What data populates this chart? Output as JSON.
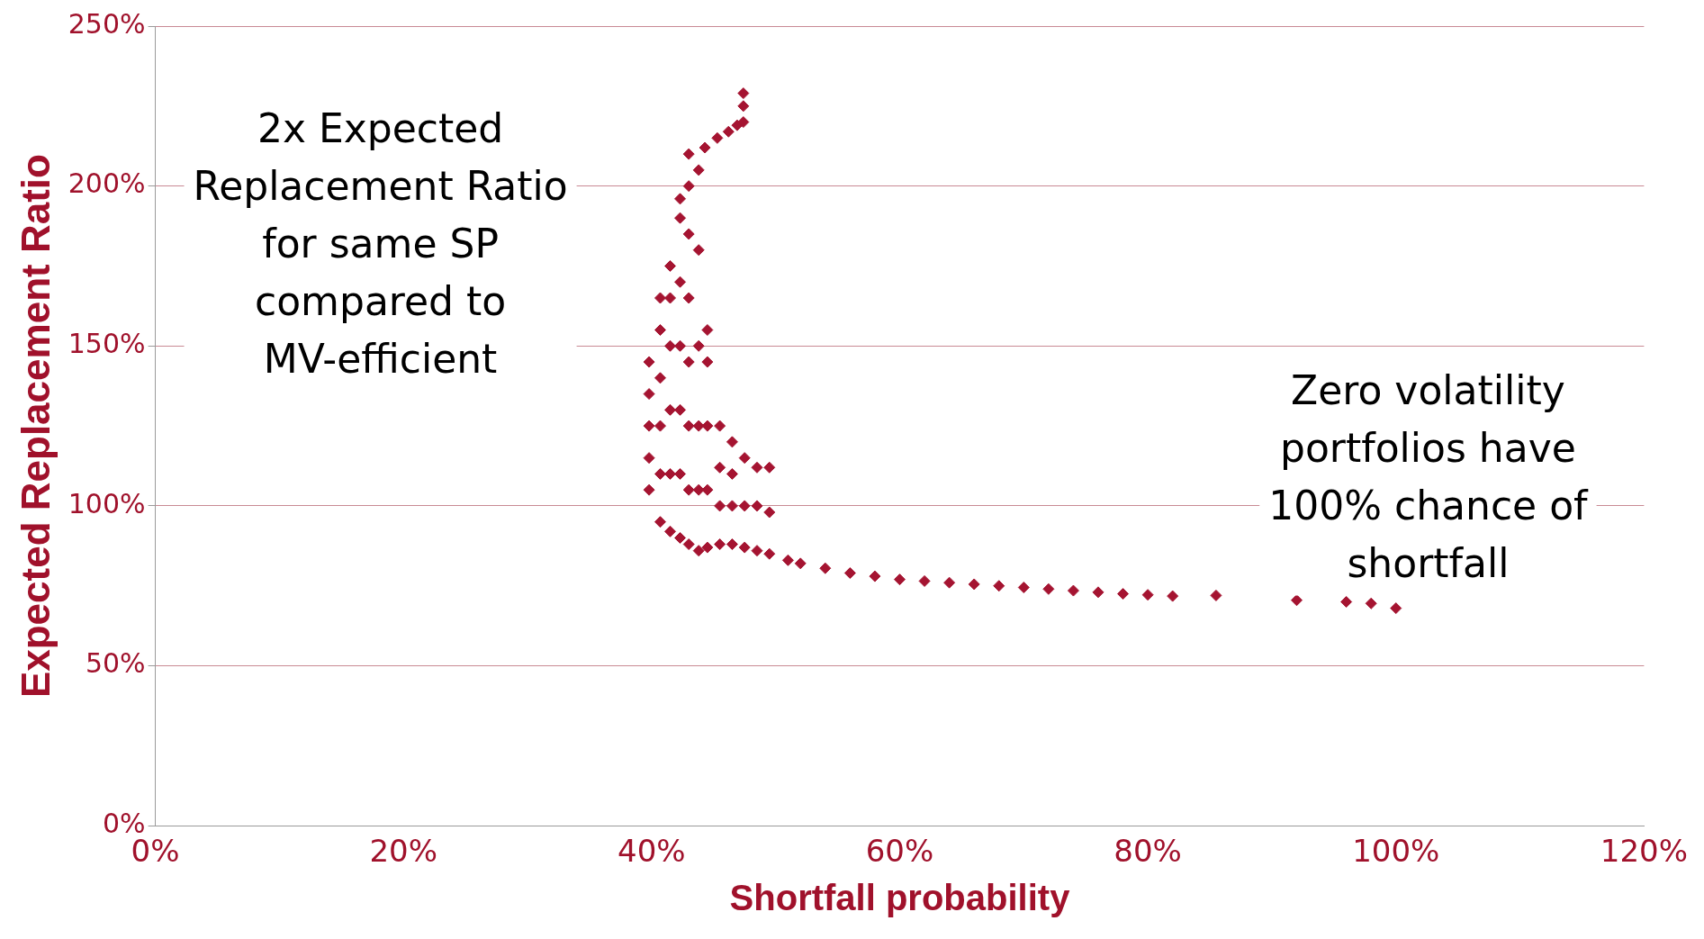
{
  "chart_data": {
    "type": "scatter",
    "xlabel": "Shortfall probability",
    "ylabel": "Expected Replacement Ratio",
    "xlim": [
      0,
      120
    ],
    "ylim": [
      0,
      250
    ],
    "xticks": [
      {
        "value": 0,
        "label": "0%"
      },
      {
        "value": 20,
        "label": "20%"
      },
      {
        "value": 40,
        "label": "40%"
      },
      {
        "value": 60,
        "label": "60%"
      },
      {
        "value": 80,
        "label": "80%"
      },
      {
        "value": 100,
        "label": "100%"
      },
      {
        "value": 120,
        "label": "120%"
      }
    ],
    "yticks": [
      {
        "value": 0,
        "label": "0%"
      },
      {
        "value": 50,
        "label": "50%"
      },
      {
        "value": 100,
        "label": "100%"
      },
      {
        "value": 150,
        "label": "150%"
      },
      {
        "value": 200,
        "label": "200%"
      },
      {
        "value": 250,
        "label": "250%"
      }
    ],
    "grid": "y",
    "marker": "diamond",
    "annotations": [
      "2x Expected Replacement Ratio for same SP compared to MV-efficient",
      "Zero volatility portfolios have 100% chance of shortfall"
    ],
    "series": [
      {
        "color": "#a51431",
        "x": [
          39.8,
          39.8,
          39.8,
          39.8,
          39.8,
          40.7,
          40.7,
          40.7,
          40.7,
          40.7,
          40.7,
          41.5,
          41.5,
          41.5,
          41.5,
          41.5,
          41.5,
          42.3,
          42.3,
          42.3,
          42.3,
          42.3,
          42.3,
          42.3,
          43,
          43,
          43,
          43,
          43,
          43,
          43,
          43,
          43.8,
          43.8,
          43.8,
          43.8,
          43.8,
          43.8,
          44.5,
          44.5,
          44.5,
          44.5,
          44.5,
          45.5,
          45.5,
          45.5,
          45.5,
          46.5,
          46.5,
          46.5,
          46.5,
          47.5,
          47.5,
          47.5,
          48.5,
          48.5,
          48.5,
          49.5,
          49.5,
          49.5,
          44.3,
          45.3,
          46.2,
          46.9,
          47.4,
          47.4,
          47.4,
          51,
          52,
          54,
          56,
          58,
          60,
          62,
          64,
          66,
          68,
          70,
          72,
          74,
          76,
          78,
          80,
          82,
          85.5,
          92,
          96,
          98,
          100
        ],
        "values": [
          105,
          115,
          125,
          135,
          145,
          95,
          110,
          125,
          140,
          155,
          165,
          92,
          110,
          130,
          150,
          165,
          175,
          90,
          110,
          130,
          150,
          170,
          190,
          196,
          88,
          105,
          125,
          145,
          165,
          185,
          200,
          210,
          86,
          105,
          125,
          150,
          180,
          205,
          87,
          105,
          125,
          145,
          155,
          88,
          100,
          112,
          125,
          88,
          100,
          110,
          120,
          87,
          100,
          115,
          86,
          100,
          112,
          85,
          98,
          112,
          212,
          215,
          217,
          219,
          220,
          225,
          229,
          83,
          82,
          80.5,
          79,
          78,
          77,
          76.5,
          76,
          75.5,
          75,
          74.5,
          74,
          73.5,
          73,
          72.5,
          72.2,
          71.8,
          72,
          70.5,
          70,
          69.5,
          68
        ]
      }
    ]
  }
}
